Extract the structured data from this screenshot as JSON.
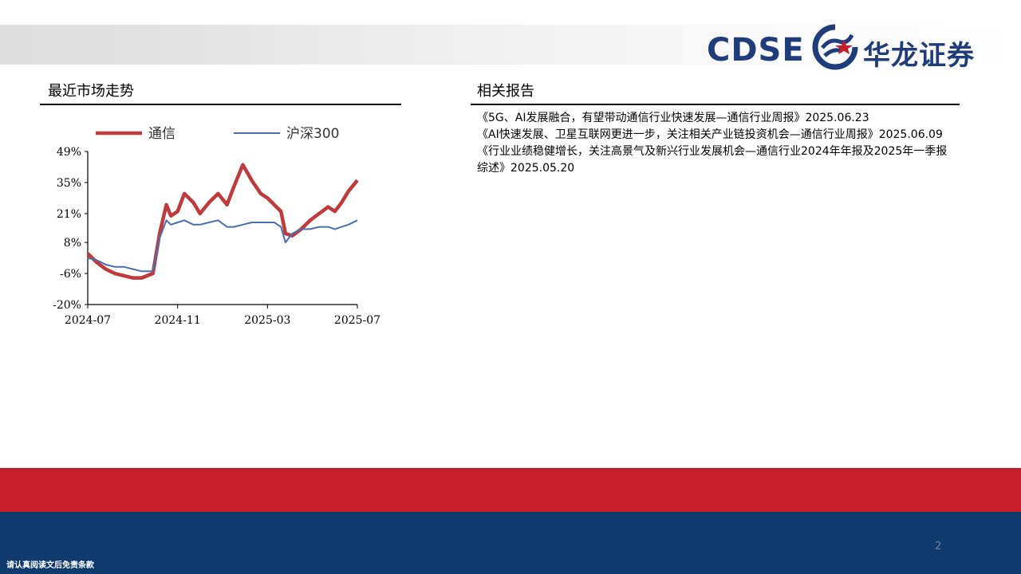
{
  "brand": {
    "logo_text": "CDSE",
    "logo_cn": "华龙证券",
    "colors": {
      "navy": "#1f3d7a",
      "red": "#c51f29",
      "footer_blue": "#0f3a6e"
    }
  },
  "left_section": {
    "title": "最近市场走势"
  },
  "right_section": {
    "title": "相关报告",
    "reports": [
      "《5G、AI发展融合，有望带动通信行业快速发展—通信行业周报》2025.06.23",
      "《AI快速发展、卫星互联网更进一步，关注相关产业链投资机会—通信行业周报》2025.06.09",
      "《行业业绩稳健增长，关注高景气及新兴行业发展机会—通信行业2024年年报及2025年一季报综述》2025.05.20"
    ]
  },
  "chart_data": {
    "type": "line",
    "title": "",
    "xlabel": "",
    "ylabel": "",
    "y_ticks": [
      "49%",
      "35%",
      "21%",
      "8%",
      "-6%",
      "-20%"
    ],
    "y_tick_values": [
      49,
      35,
      21,
      8,
      -6,
      -20
    ],
    "ylim": [
      -20,
      49
    ],
    "x_ticks": [
      "2024-07",
      "2024-11",
      "2025-03",
      "2025-07"
    ],
    "x_tick_values": [
      0,
      4,
      8,
      12
    ],
    "xlim": [
      0,
      12
    ],
    "legend_position": "top",
    "grid": false,
    "series": [
      {
        "name": "通信",
        "color": "#c0393b",
        "x": [
          0,
          0.4,
          0.8,
          1.2,
          1.6,
          2.0,
          2.4,
          2.9,
          3.2,
          3.5,
          3.7,
          4.0,
          4.3,
          4.7,
          5.0,
          5.4,
          5.8,
          6.2,
          6.5,
          6.9,
          7.3,
          7.7,
          8.0,
          8.3,
          8.6,
          8.8,
          9.1,
          9.5,
          9.9,
          10.3,
          10.7,
          11.0,
          11.3,
          11.6,
          12.0
        ],
        "values": [
          3,
          -1,
          -4,
          -6,
          -7,
          -8,
          -8,
          -6,
          12,
          25,
          20,
          22,
          30,
          26,
          21,
          26,
          30,
          25,
          33,
          43,
          36,
          30,
          28,
          25,
          22,
          12,
          11,
          14,
          18,
          21,
          24,
          22,
          26,
          31,
          36
        ]
      },
      {
        "name": "沪深300",
        "color": "#4a6fb0",
        "x": [
          0,
          0.4,
          0.8,
          1.2,
          1.6,
          2.0,
          2.4,
          2.9,
          3.2,
          3.5,
          3.7,
          4.0,
          4.3,
          4.7,
          5.0,
          5.4,
          5.8,
          6.2,
          6.5,
          6.9,
          7.3,
          7.7,
          8.0,
          8.3,
          8.6,
          8.8,
          9.1,
          9.5,
          9.9,
          10.3,
          10.7,
          11.0,
          11.3,
          11.6,
          12.0
        ],
        "values": [
          1,
          0,
          -2,
          -3,
          -3,
          -4,
          -5,
          -5,
          10,
          18,
          16,
          17,
          18,
          16,
          16,
          17,
          18,
          15,
          15,
          16,
          17,
          17,
          17,
          17,
          15,
          8,
          12,
          14,
          14,
          15,
          15,
          14,
          15,
          16,
          18
        ]
      }
    ]
  },
  "footer": {
    "page_number": "2",
    "disclaimer": "请认真阅读文后免责条款"
  }
}
